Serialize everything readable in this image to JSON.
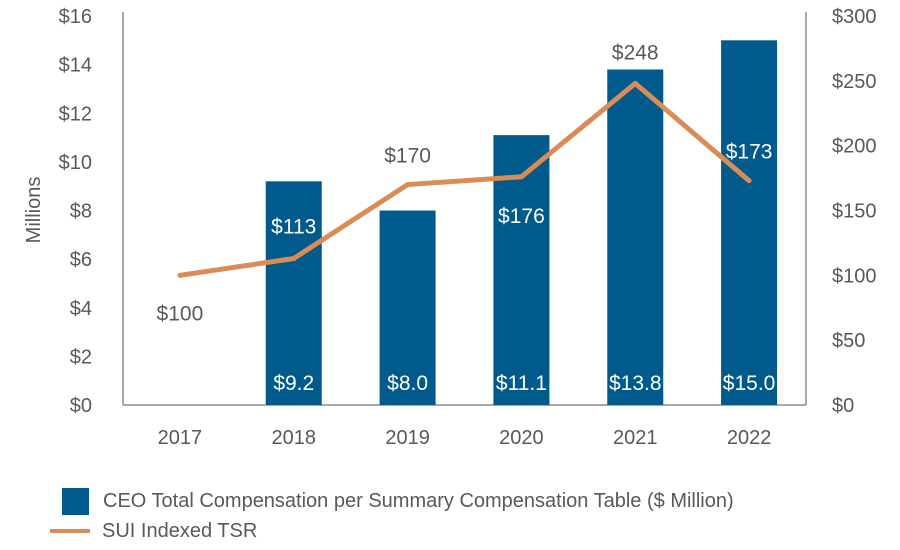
{
  "chart_data": {
    "type": "bar",
    "categories": [
      "2017",
      "2018",
      "2019",
      "2020",
      "2021",
      "2022"
    ],
    "series": [
      {
        "name": "CEO Total Compensation per Summary Compensation Table ($ Million)",
        "kind": "bar",
        "axis": "left",
        "values": [
          null,
          9.2,
          8.0,
          11.1,
          13.8,
          15.0
        ],
        "labels": [
          "",
          "$9.2",
          "$8.0",
          "$11.1",
          "$13.8",
          "$15.0"
        ]
      },
      {
        "name": "SUI Indexed TSR",
        "kind": "line",
        "axis": "right",
        "values": [
          100,
          113,
          170,
          176,
          248,
          173
        ],
        "labels": [
          "$100",
          "$113",
          "$170",
          "$176",
          "$248",
          "$173"
        ]
      }
    ],
    "ylabel": "Millions",
    "ylim": [
      0,
      16
    ],
    "y2lim": [
      0,
      300
    ],
    "yticks": [
      "$0",
      "$2",
      "$4",
      "$6",
      "$8",
      "$10",
      "$12",
      "$14",
      "$16"
    ],
    "y2ticks": [
      "$0",
      "$50",
      "$100",
      "$150",
      "$200",
      "$250",
      "$300"
    ],
    "legend_position": "bottom-left"
  },
  "colors": {
    "bar": "#005a8c",
    "line": "#d98c55",
    "axis": "#8c8c8c",
    "text": "#595959"
  }
}
